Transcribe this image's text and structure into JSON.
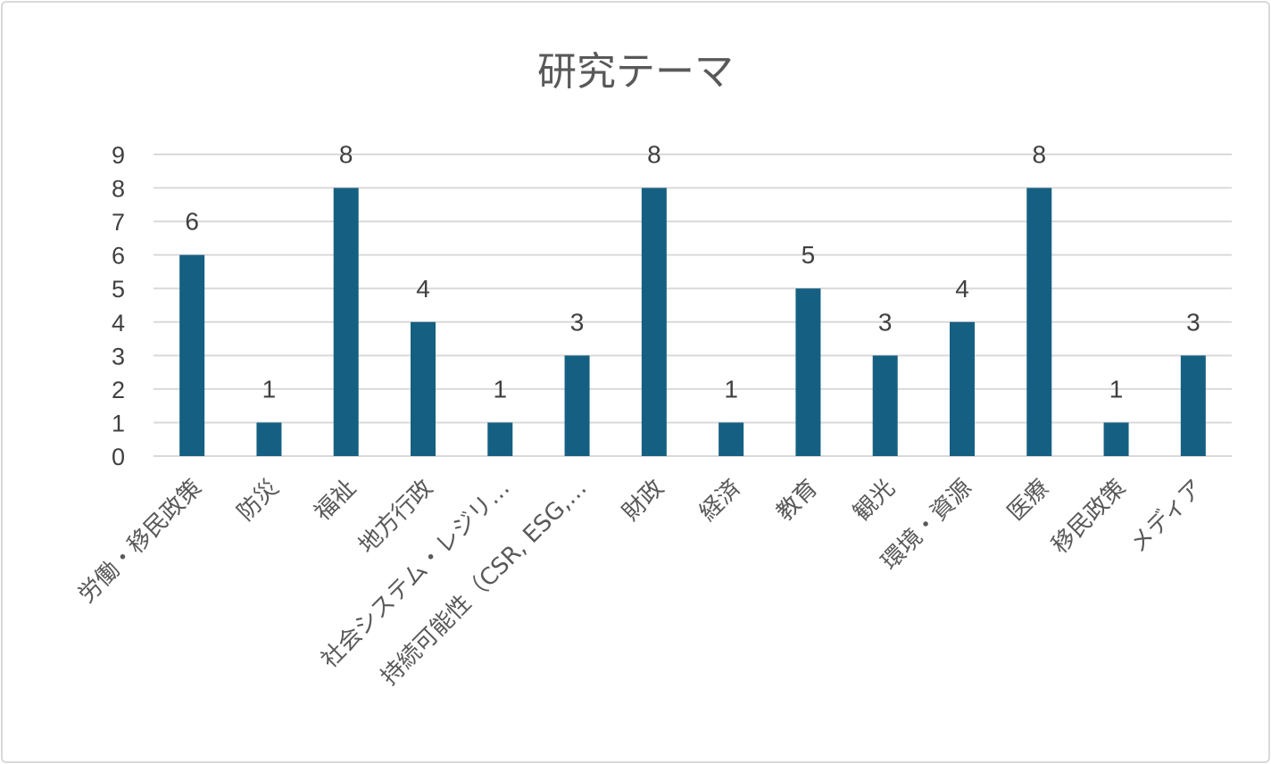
{
  "chart_data": {
    "type": "bar",
    "title": "研究テーマ",
    "xlabel": "",
    "ylabel": "",
    "ylim": [
      0,
      9
    ],
    "yticks": [
      0,
      1,
      2,
      3,
      4,
      5,
      6,
      7,
      8,
      9
    ],
    "grid": true,
    "legend": "none",
    "categories": [
      "労働・移民政策",
      "防災",
      "福祉",
      "地方行政",
      "社会システム・レジリ…",
      "持続可能性（CSR, ESG,…",
      "財政",
      "経済",
      "教育",
      "観光",
      "環境・資源",
      "医療",
      "移民政策",
      "メディア"
    ],
    "values": [
      6,
      1,
      8,
      4,
      1,
      3,
      8,
      1,
      5,
      3,
      4,
      8,
      1,
      3
    ],
    "bar_color": "#156082",
    "grid_color": "#d9d9d9"
  }
}
